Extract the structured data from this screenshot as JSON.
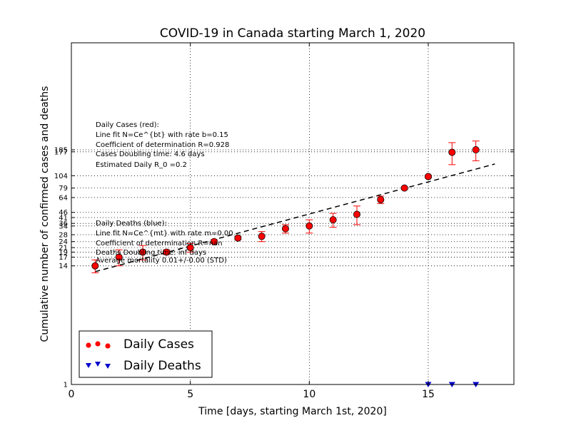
{
  "chart_data": {
    "type": "scatter",
    "title": "COVID-19 in Canada starting March 1, 2020",
    "xlabel": "Time [days, starting March 1st, 2020]",
    "ylabel": "Cumulative number of confirmed cases and deaths",
    "xlim": [
      0,
      18.6
    ],
    "ylim": [
      1,
      2000
    ],
    "yscale": "log",
    "grid": "dotted",
    "x_ticks": [
      0,
      5,
      10,
      15
    ],
    "x_tick_labels": [
      "0",
      "5",
      "10",
      "15"
    ],
    "x_grid": [
      5,
      10,
      15
    ],
    "y_ticks": [
      1,
      14,
      17,
      19,
      21,
      24,
      28,
      34,
      36,
      41,
      46,
      64,
      79,
      104,
      177,
      185
    ],
    "y_tick_labels": [
      "1",
      "14",
      "17",
      "19",
      "21",
      "24",
      "28",
      "34",
      "36",
      "41",
      "46",
      "64",
      "79",
      "104",
      "177",
      "185"
    ],
    "series": [
      {
        "name": "Daily Cases",
        "color": "#ff0000",
        "marker": "circle",
        "x": [
          1,
          2,
          3,
          4,
          5,
          6,
          7,
          8,
          9,
          10,
          11,
          12,
          13,
          14,
          15,
          16,
          17
        ],
        "y": [
          14,
          17,
          19,
          19,
          21,
          24,
          26,
          27,
          32,
          34,
          39,
          44,
          61,
          79,
          102,
          175,
          185
        ],
        "err_low": [
          2,
          3,
          3,
          1,
          2,
          1,
          1,
          3,
          3,
          5,
          6,
          9,
          5,
          2,
          3,
          42,
          40
        ],
        "err_high": [
          2,
          3,
          3,
          1,
          2,
          1,
          1,
          3,
          3,
          5,
          6,
          9,
          5,
          2,
          3,
          42,
          40
        ]
      },
      {
        "name": "Daily Deaths",
        "color": "#0000cc",
        "marker": "triangle-down",
        "x": [
          15,
          16,
          17
        ],
        "y": [
          1,
          1,
          1
        ]
      }
    ],
    "fit_line": {
      "style": "dashed",
      "color": "#000000",
      "x": [
        1,
        17.8
      ],
      "y": [
        12.3,
        135
      ]
    },
    "legend": {
      "position": "bottom-left",
      "entries": [
        "Daily Cases",
        "Daily Deaths"
      ]
    },
    "annotations": {
      "cases": [
        "Daily Cases (red):",
        "Line fit N=Ce^{bt} with rate b=0.15",
        "Coefficient of determination R=0.928",
        "Cases Doubling time: 4.6 days",
        "Estimated Daily R_0 =0.2"
      ],
      "deaths": [
        "Daily Deaths (blue):",
        "Line fit N=Ce^{mt} with rate m=0.00",
        "Coefficient of determination R=nan",
        "Deaths Doubling time: inf days",
        "Average mortality 0.01+/-0.00 (STD)"
      ]
    }
  }
}
